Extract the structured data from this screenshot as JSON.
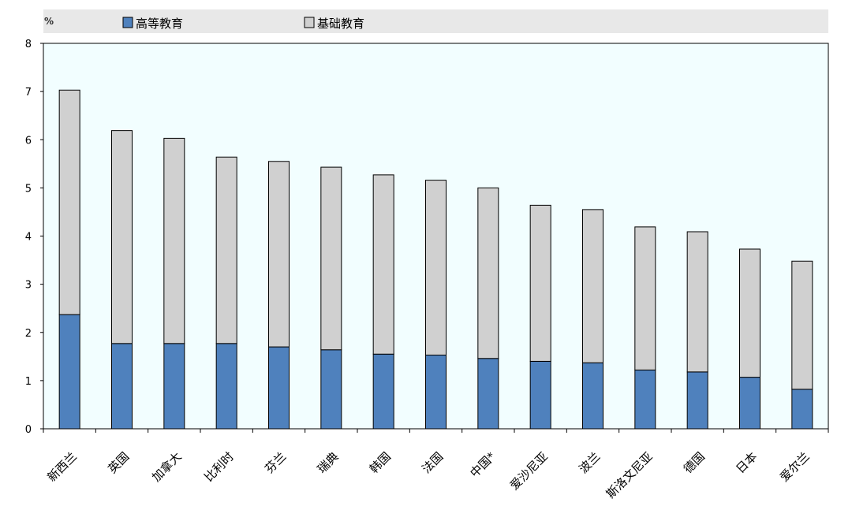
{
  "chart_data": {
    "type": "bar",
    "stacked": true,
    "unit_label": "%",
    "categories": [
      "新西兰",
      "英国",
      "加拿大",
      "比利时",
      "芬兰",
      "瑞典",
      "韩国",
      "法国",
      "中国*",
      "爱沙尼亚",
      "波兰",
      "斯洛文尼亚",
      "德国",
      "日本",
      "爱尔兰"
    ],
    "series": [
      {
        "name": "高等教育",
        "color": "#4f81bd",
        "values": [
          2.37,
          1.77,
          1.77,
          1.77,
          1.7,
          1.64,
          1.55,
          1.53,
          1.46,
          1.4,
          1.37,
          1.22,
          1.18,
          1.07,
          0.82
        ]
      },
      {
        "name": "基础教育",
        "color": "#d0d0d0",
        "values": [
          4.66,
          4.42,
          4.26,
          3.87,
          3.85,
          3.79,
          3.72,
          3.63,
          3.54,
          3.24,
          3.18,
          2.97,
          2.91,
          2.66,
          2.66
        ]
      }
    ],
    "ylim": [
      0,
      8
    ],
    "yticks": [
      0,
      1,
      2,
      3,
      4,
      5,
      6,
      7,
      8
    ],
    "grid": false,
    "legend_position": "top",
    "plot_background": "#f2feff",
    "legend_background": "#e8e8e8"
  }
}
